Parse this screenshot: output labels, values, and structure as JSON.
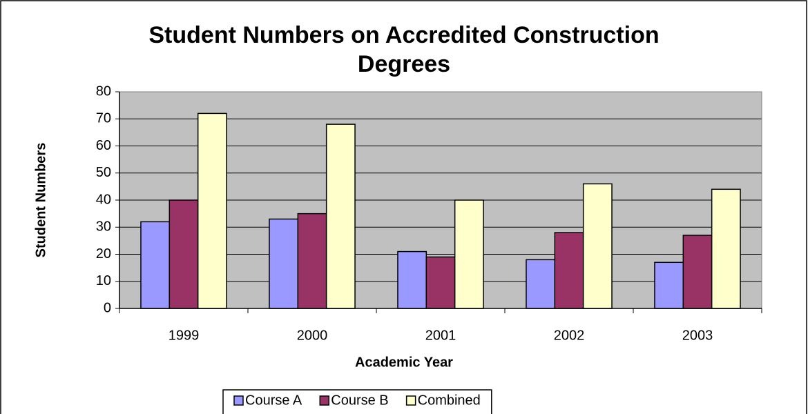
{
  "chart_data": {
    "type": "bar",
    "title": "Student Numbers on Accredited Construction Degrees",
    "x_label": "Academic Year",
    "y_label": "Student Numbers",
    "categories": [
      "1999",
      "2000",
      "2001",
      "2002",
      "2003"
    ],
    "series": [
      {
        "name": "Course A",
        "color": "#9999ff",
        "values": [
          32,
          33,
          21,
          18,
          17
        ]
      },
      {
        "name": "Course B",
        "color": "#993366",
        "values": [
          40,
          35,
          19,
          28,
          27
        ]
      },
      {
        "name": "Combined",
        "color": "#ffffcc",
        "values": [
          72,
          68,
          40,
          46,
          44
        ]
      }
    ],
    "ylim": [
      0,
      80
    ],
    "yticks": [
      0,
      10,
      20,
      30,
      40,
      50,
      60,
      70,
      80
    ],
    "grid": true,
    "plot_background": "#c0c0c0",
    "legend": "bottom"
  }
}
